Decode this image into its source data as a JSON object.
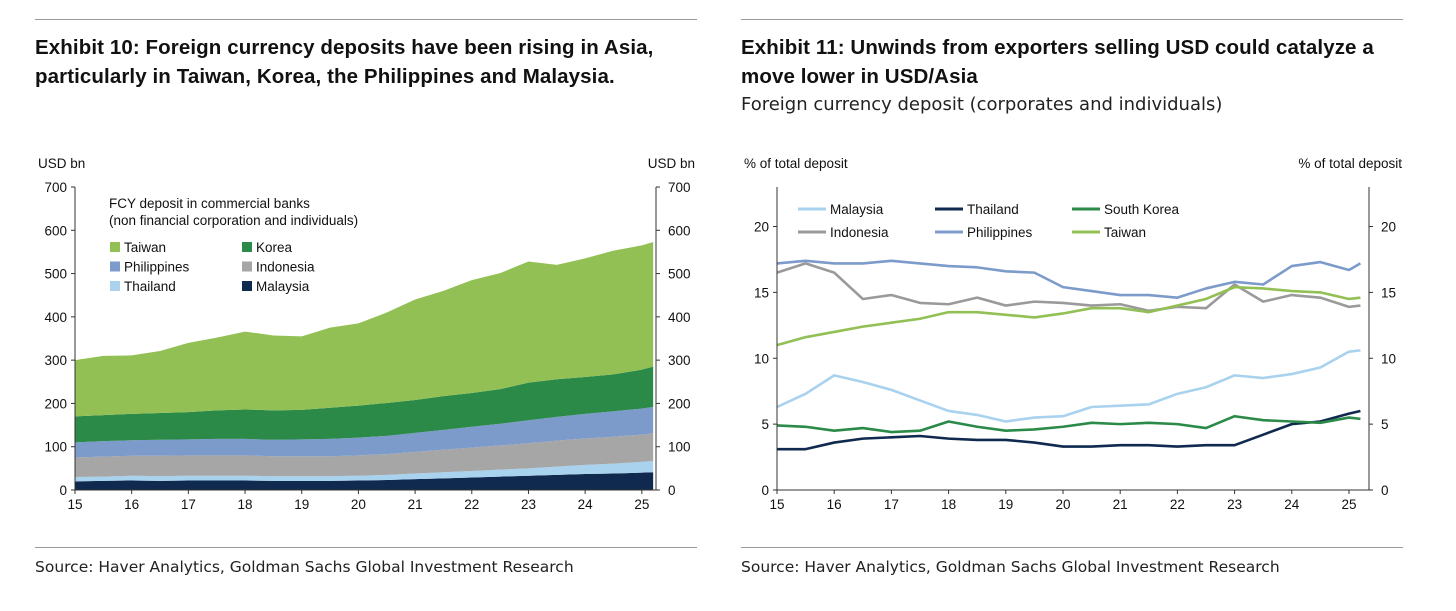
{
  "exhibit10": {
    "title_line1": "Exhibit 10: Foreign currency deposits have been rising in Asia,",
    "title_line2": "particularly in Taiwan, Korea, the Philippines and Malaysia.",
    "source": "Source: Haver Analytics, Goldman Sachs Global Investment Research"
  },
  "exhibit11": {
    "title_line1": "Exhibit 11: Unwinds from exporters selling USD could catalyze a",
    "title_line2": "move lower in USD/Asia",
    "subtitle": "Foreign currency deposit (corporates and individuals)",
    "source": "Source: Haver Analytics, Goldman Sachs Global Investment Research"
  },
  "chart_data": [
    {
      "type": "area",
      "stacked": true,
      "ylabel_left": "USD bn",
      "ylabel_right": "USD bn",
      "ylim": [
        0,
        700
      ],
      "yticks": [
        0,
        100,
        200,
        300,
        400,
        500,
        600,
        700
      ],
      "xlim": [
        2015,
        2025.25
      ],
      "xticks": [
        2015,
        2016,
        2017,
        2018,
        2019,
        2020,
        2021,
        2022,
        2023,
        2024,
        2025
      ],
      "xtick_labels": [
        "15",
        "16",
        "17",
        "18",
        "19",
        "20",
        "21",
        "22",
        "23",
        "24",
        "25"
      ],
      "legend_title_line1": "FCY deposit in commercial banks",
      "legend_title_line2": "(non financial corporation and individuals)",
      "legend_placement": "top-left",
      "x": [
        2015.0,
        2015.5,
        2016.0,
        2016.5,
        2017.0,
        2017.5,
        2018.0,
        2018.5,
        2019.0,
        2019.5,
        2020.0,
        2020.5,
        2021.0,
        2021.5,
        2022.0,
        2022.5,
        2023.0,
        2023.5,
        2024.0,
        2024.5,
        2025.0,
        2025.2
      ],
      "series": [
        {
          "name": "Malaysia",
          "color": "#0f2a4e",
          "values": [
            20,
            21,
            22,
            21,
            22,
            22,
            22,
            21,
            21,
            21,
            22,
            23,
            25,
            27,
            29,
            31,
            33,
            35,
            37,
            38,
            40,
            41
          ]
        },
        {
          "name": "Thailand",
          "color": "#a9d2ee",
          "values": [
            10,
            10,
            11,
            11,
            11,
            11,
            11,
            11,
            11,
            11,
            11,
            12,
            13,
            14,
            15,
            16,
            17,
            19,
            21,
            23,
            25,
            26
          ]
        },
        {
          "name": "Indonesia",
          "color": "#a6a6a6",
          "values": [
            45,
            46,
            46,
            47,
            47,
            47,
            47,
            46,
            46,
            46,
            47,
            48,
            50,
            52,
            54,
            56,
            58,
            60,
            61,
            62,
            63,
            64
          ]
        },
        {
          "name": "Philippines",
          "color": "#7c9bcb",
          "values": [
            35,
            36,
            36,
            37,
            37,
            38,
            38,
            38,
            39,
            40,
            41,
            42,
            44,
            46,
            48,
            50,
            53,
            55,
            57,
            59,
            60,
            61
          ]
        },
        {
          "name": "Korea",
          "color": "#2b8a48",
          "values": [
            60,
            60,
            61,
            62,
            63,
            66,
            68,
            68,
            68,
            72,
            74,
            76,
            76,
            78,
            78,
            80,
            87,
            87,
            85,
            85,
            90,
            93
          ]
        },
        {
          "name": "Taiwan",
          "color": "#92c054",
          "values": [
            130,
            137,
            135,
            143,
            160,
            168,
            180,
            173,
            170,
            185,
            190,
            209,
            232,
            243,
            261,
            268,
            280,
            264,
            274,
            286,
            287,
            288
          ]
        }
      ]
    },
    {
      "type": "line",
      "ylabel_left": "% of total deposit",
      "ylabel_right": "% of total deposit",
      "ylim": [
        0,
        23
      ],
      "yticks": [
        0,
        5,
        10,
        15,
        20
      ],
      "xlim": [
        2015,
        2025.35
      ],
      "xticks": [
        2015,
        2016,
        2017,
        2018,
        2019,
        2020,
        2021,
        2022,
        2023,
        2024,
        2025
      ],
      "xtick_labels": [
        "15",
        "16",
        "17",
        "18",
        "19",
        "20",
        "21",
        "22",
        "23",
        "24",
        "25"
      ],
      "legend_placement": "top-left",
      "x": [
        2015.0,
        2015.5,
        2016.0,
        2016.5,
        2017.0,
        2017.5,
        2018.0,
        2018.5,
        2019.0,
        2019.5,
        2020.0,
        2020.5,
        2021.0,
        2021.5,
        2022.0,
        2022.5,
        2023.0,
        2023.5,
        2024.0,
        2024.5,
        2025.0,
        2025.2
      ],
      "series": [
        {
          "name": "Malaysia",
          "color": "#a9d2ee",
          "values": [
            6.3,
            7.3,
            8.7,
            8.2,
            7.6,
            6.8,
            6.0,
            5.7,
            5.2,
            5.5,
            5.6,
            6.3,
            6.4,
            6.5,
            7.3,
            7.8,
            8.7,
            8.5,
            8.8,
            9.3,
            10.5,
            10.6
          ]
        },
        {
          "name": "Thailand",
          "color": "#0f2a4e",
          "values": [
            3.1,
            3.1,
            3.6,
            3.9,
            4.0,
            4.1,
            3.9,
            3.8,
            3.8,
            3.6,
            3.3,
            3.3,
            3.4,
            3.4,
            3.3,
            3.4,
            3.4,
            4.2,
            5.0,
            5.2,
            5.8,
            6.0
          ]
        },
        {
          "name": "South Korea",
          "color": "#2b8a48",
          "values": [
            4.9,
            4.8,
            4.5,
            4.7,
            4.4,
            4.5,
            5.2,
            4.8,
            4.5,
            4.6,
            4.8,
            5.1,
            5.0,
            5.1,
            5.0,
            4.7,
            5.6,
            5.3,
            5.2,
            5.1,
            5.5,
            5.4
          ]
        },
        {
          "name": "Indonesia",
          "color": "#9a9a9a",
          "values": [
            16.5,
            17.2,
            16.5,
            14.5,
            14.8,
            14.2,
            14.1,
            14.6,
            14.0,
            14.3,
            14.2,
            14.0,
            14.1,
            13.6,
            13.9,
            13.8,
            15.6,
            14.3,
            14.8,
            14.6,
            13.9,
            14.0
          ]
        },
        {
          "name": "Philippines",
          "color": "#7c9bcb",
          "values": [
            17.2,
            17.4,
            17.2,
            17.2,
            17.4,
            17.2,
            17.0,
            16.9,
            16.6,
            16.5,
            15.4,
            15.1,
            14.8,
            14.8,
            14.6,
            15.3,
            15.8,
            15.6,
            17.0,
            17.3,
            16.7,
            17.2
          ]
        },
        {
          "name": "Taiwan",
          "color": "#92c054",
          "values": [
            11.0,
            11.6,
            12.0,
            12.4,
            12.7,
            13.0,
            13.5,
            13.5,
            13.3,
            13.1,
            13.4,
            13.8,
            13.8,
            13.5,
            14.0,
            14.5,
            15.4,
            15.3,
            15.1,
            15.0,
            14.5,
            14.6
          ]
        }
      ]
    }
  ]
}
